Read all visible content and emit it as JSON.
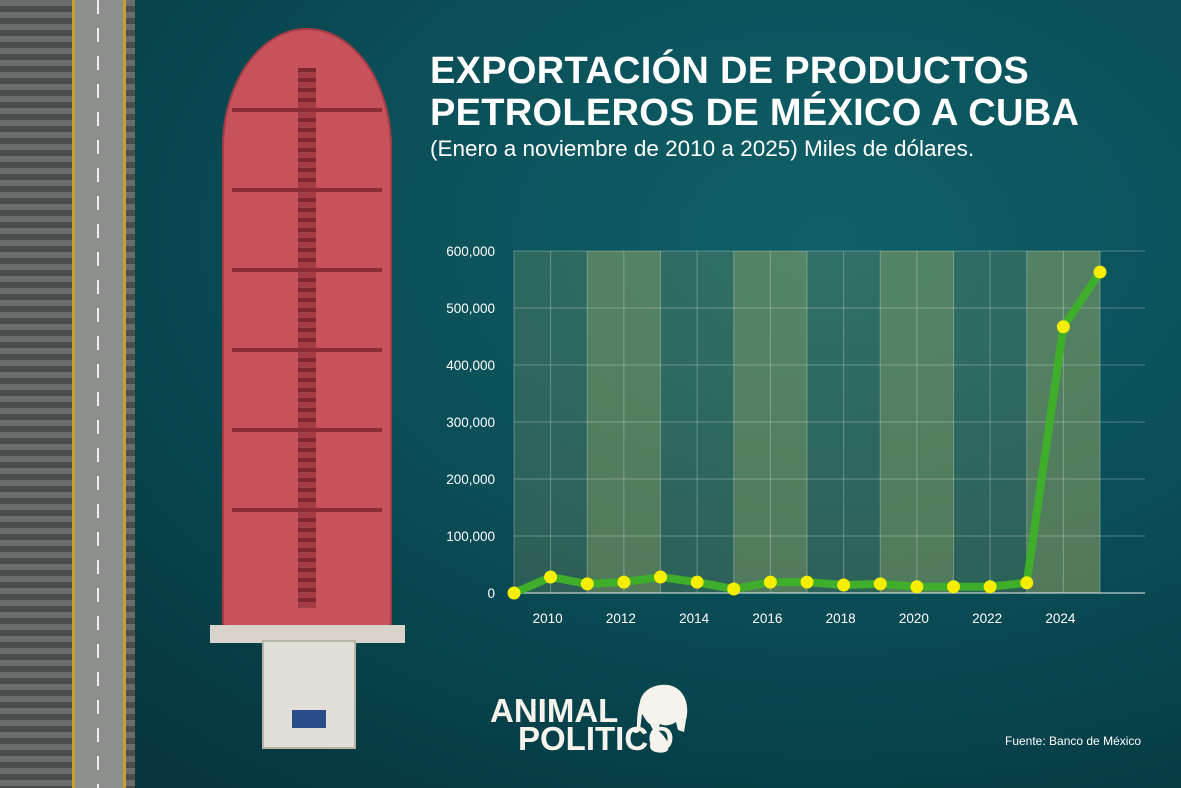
{
  "header": {
    "title_line1": "EXPORTACIÓN DE PRODUCTOS",
    "title_line2": "PETROLEROS DE MÉXICO A CUBA",
    "subtitle": "(Enero a noviembre de 2010 a 2025) Miles de dólares."
  },
  "logo": {
    "line1": "ANIMAL",
    "line2": "POLITICO"
  },
  "source": "Fuente: Banco de México",
  "colors": {
    "line": "#3fae2a",
    "marker": "#f5ee00",
    "stripe": "#c8c46a",
    "background": "#0a4d56"
  },
  "chart_data": {
    "type": "line",
    "title": "EXPORTACIÓN DE PRODUCTOS PETROLEROS DE MÉXICO A CUBA",
    "subtitle": "(Enero a noviembre de 2010 a 2025) Miles de dólares.",
    "xlabel": "",
    "ylabel": "",
    "x": [
      2009,
      2010,
      2011,
      2012,
      2013,
      2014,
      2015,
      2016,
      2017,
      2018,
      2019,
      2020,
      2021,
      2022,
      2023,
      2024,
      2025
    ],
    "values": [
      0,
      28000,
      16000,
      19000,
      28000,
      19000,
      7000,
      19000,
      19000,
      14000,
      16000,
      11000,
      11000,
      11000,
      18000,
      467000,
      563000
    ],
    "xlim": [
      2009,
      2025
    ],
    "ylim": [
      0,
      600000
    ],
    "x_tick_labels": [
      "2010",
      "2012",
      "2014",
      "2016",
      "2018",
      "2020",
      "2022",
      "2024"
    ],
    "x_ticks": [
      2010,
      2012,
      2014,
      2016,
      2018,
      2020,
      2022,
      2024
    ],
    "y_tick_labels": [
      "0",
      "100,000",
      "200,000",
      "300,000",
      "400,000",
      "500,000",
      "600,000"
    ],
    "y_ticks": [
      0,
      100000,
      200000,
      300000,
      400000,
      500000,
      600000
    ],
    "grid": true,
    "legend": "none"
  }
}
